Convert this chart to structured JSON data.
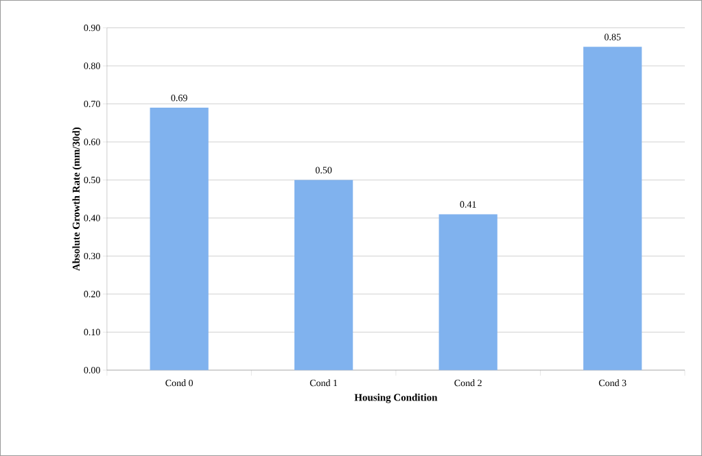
{
  "chart_data": {
    "type": "bar",
    "xlabel": "Housing Condition",
    "ylabel": "Absolute Growth Rate (mm/30d)",
    "categories": [
      "Cond 0",
      "Cond 1",
      "Cond 2",
      "Cond 3"
    ],
    "values": [
      0.69,
      0.5,
      0.41,
      0.85
    ],
    "value_labels": [
      "0.69",
      "0.50",
      "0.41",
      "0.85"
    ],
    "color": "#80b2ee",
    "ylim": [
      0,
      0.9
    ],
    "yticks": [
      {
        "value": 0,
        "label": "0.00"
      },
      {
        "value": 0.1,
        "label": "0.10"
      },
      {
        "value": 0.2,
        "label": "0.20"
      },
      {
        "value": 0.3,
        "label": "0.30"
      },
      {
        "value": 0.4,
        "label": "0.40"
      },
      {
        "value": 0.5,
        "label": "0.50"
      },
      {
        "value": 0.6,
        "label": "0.60"
      },
      {
        "value": 0.7,
        "label": "0.70"
      },
      {
        "value": 0.8,
        "label": "0.80"
      },
      {
        "value": 0.9,
        "label": "0.90"
      }
    ],
    "grid": "y"
  }
}
